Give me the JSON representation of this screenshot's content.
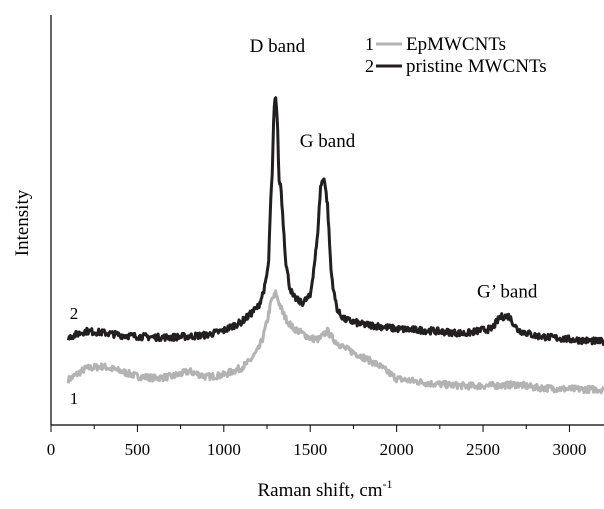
{
  "chart_data": {
    "type": "line",
    "xlabel": "Raman shift, cm",
    "xlabel_sup": "-1",
    "ylabel": "Intensity",
    "xlim": [
      0,
      3200
    ],
    "ylim": [
      0,
      100
    ],
    "x_ticks": [
      0,
      500,
      1000,
      1500,
      2000,
      2500,
      3000
    ],
    "x_tick_labels": [
      "0",
      "500",
      "1000",
      "1500",
      "2000",
      "2500",
      "3000"
    ],
    "y_ticks": [],
    "grid": false,
    "legend_position": "top-right",
    "annotations": [
      {
        "text": "D band",
        "x": 1310,
        "y": 114
      },
      {
        "text": "G band",
        "x": 1600,
        "y": 83
      },
      {
        "text": "G’ band",
        "x": 2640,
        "y": 34
      }
    ],
    "series": [
      {
        "name": "EpMWCNTs",
        "legend_number": "1",
        "curve_label": "1",
        "color": "#b3b3b3",
        "x": [
          100,
          200,
          300,
          400,
          500,
          600,
          700,
          800,
          900,
          1000,
          1100,
          1150,
          1200,
          1225,
          1250,
          1275,
          1300,
          1320,
          1340,
          1360,
          1380,
          1400,
          1450,
          1500,
          1550,
          1600,
          1620,
          1650,
          1700,
          1800,
          1900,
          2000,
          2200,
          2400,
          2600,
          2700,
          2800,
          3000,
          3200
        ],
        "values": [
          7.2,
          10.9,
          11.6,
          10.1,
          8.4,
          7.8,
          8.3,
          10.0,
          8.2,
          8.8,
          11.1,
          13.3,
          17.1,
          20.7,
          26.2,
          32.9,
          35.4,
          32.3,
          29.2,
          27.1,
          25.5,
          24.2,
          22.5,
          20.8,
          20.4,
          23.1,
          21.4,
          19.6,
          17.5,
          14.8,
          11.8,
          7.6,
          6.0,
          5.2,
          5.4,
          5.7,
          4.7,
          4.2,
          4.1
        ]
      },
      {
        "name": "pristine MWCNTs",
        "legend_number": "2",
        "curve_label": "2",
        "color": "#231f20",
        "x": [
          100,
          200,
          300,
          400,
          500,
          600,
          700,
          800,
          900,
          1000,
          1050,
          1100,
          1150,
          1200,
          1220,
          1240,
          1260,
          1270,
          1280,
          1290,
          1300,
          1310,
          1320,
          1330,
          1340,
          1360,
          1380,
          1400,
          1450,
          1500,
          1540,
          1560,
          1580,
          1600,
          1620,
          1640,
          1660,
          1700,
          1800,
          1900,
          2000,
          2200,
          2400,
          2500,
          2550,
          2600,
          2650,
          2700,
          2800,
          3000,
          3200
        ],
        "values": [
          21.1,
          23.1,
          22.6,
          21.8,
          21.4,
          21.1,
          21.1,
          21.4,
          21.8,
          23.3,
          24.7,
          26.0,
          28.4,
          31.2,
          34.3,
          38.1,
          45.8,
          63.9,
          73.5,
          94.9,
          100.0,
          91.7,
          71.7,
          70.8,
          61.3,
          45.1,
          37.8,
          34.4,
          32.2,
          34.4,
          52.3,
          70.1,
          73.5,
          64.2,
          43.0,
          34.6,
          29.4,
          26.9,
          25.3,
          24.7,
          23.8,
          23.2,
          22.3,
          23.5,
          23.8,
          27.7,
          28.0,
          23.5,
          21.6,
          20.4,
          19.6
        ]
      }
    ]
  }
}
